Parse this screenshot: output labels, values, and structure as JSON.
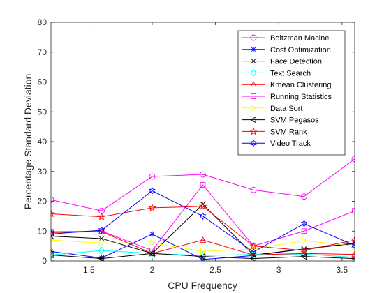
{
  "chart_data": {
    "type": "line",
    "title": "",
    "xlabel": "CPU Frequency",
    "ylabel": "Percentage Standard Deviation",
    "xlim": [
      1.2,
      3.6
    ],
    "ylim": [
      0,
      80
    ],
    "xticks": [
      1.5,
      2,
      2.5,
      3,
      3.5
    ],
    "xtick_labels": [
      "1.5",
      "2",
      "2.5",
      "3",
      "3.5"
    ],
    "yticks": [
      0,
      10,
      20,
      30,
      40,
      50,
      60,
      70,
      80
    ],
    "ytick_labels": [
      "0",
      "10",
      "20",
      "30",
      "40",
      "50",
      "60",
      "70",
      "80"
    ],
    "grid": false,
    "legend_position": "top-right",
    "x": [
      1.2,
      1.6,
      2.0,
      2.4,
      2.8,
      3.2,
      3.6
    ],
    "series": [
      {
        "name": "Boltzman Macine",
        "color": "#ff00ff",
        "marker": "circle",
        "values": [
          20.5,
          16.8,
          28.3,
          29.0,
          23.8,
          21.6,
          34.2
        ]
      },
      {
        "name": "Cost Optimization",
        "color": "#0000ff",
        "marker": "asterisk",
        "values": [
          3.2,
          1.0,
          9.0,
          0.5,
          1.8,
          4.0,
          6.0
        ]
      },
      {
        "name": "Face Detection",
        "color": "#000000",
        "marker": "x",
        "values": [
          8.3,
          7.5,
          2.5,
          19.0,
          2.0,
          4.0,
          5.8
        ]
      },
      {
        "name": "Text Search",
        "color": "#00ffff",
        "marker": "diamond",
        "values": [
          2.0,
          3.5,
          2.5,
          1.8,
          2.2,
          2.3,
          1.2
        ]
      },
      {
        "name": "Kmean Clustering",
        "color": "#ff0000",
        "marker": "triangle-up",
        "values": [
          9.5,
          9.8,
          2.5,
          7.0,
          2.0,
          2.5,
          2.2
        ]
      },
      {
        "name": "Running Statistics",
        "color": "#ff00ff",
        "marker": "square",
        "values": [
          9.8,
          10.0,
          3.5,
          25.5,
          5.0,
          10.0,
          16.8
        ]
      },
      {
        "name": "Data Sort",
        "color": "#ffff00",
        "marker": "triangle-right",
        "values": [
          7.0,
          6.0,
          6.0,
          3.2,
          4.0,
          6.8,
          5.0
        ]
      },
      {
        "name": "SVM Pegasos",
        "color": "#000000",
        "marker": "triangle-left",
        "values": [
          2.0,
          0.8,
          2.5,
          1.5,
          0.8,
          1.5,
          0.8
        ]
      },
      {
        "name": "SVM Rank",
        "color": "#ff0000",
        "marker": "pentagram",
        "values": [
          15.8,
          14.8,
          17.8,
          18.3,
          5.0,
          3.5,
          7.0
        ]
      },
      {
        "name": "Video Track",
        "color": "#0000ff",
        "marker": "hexagram",
        "values": [
          9.0,
          10.3,
          23.5,
          15.0,
          3.0,
          12.5,
          5.2
        ]
      }
    ]
  }
}
